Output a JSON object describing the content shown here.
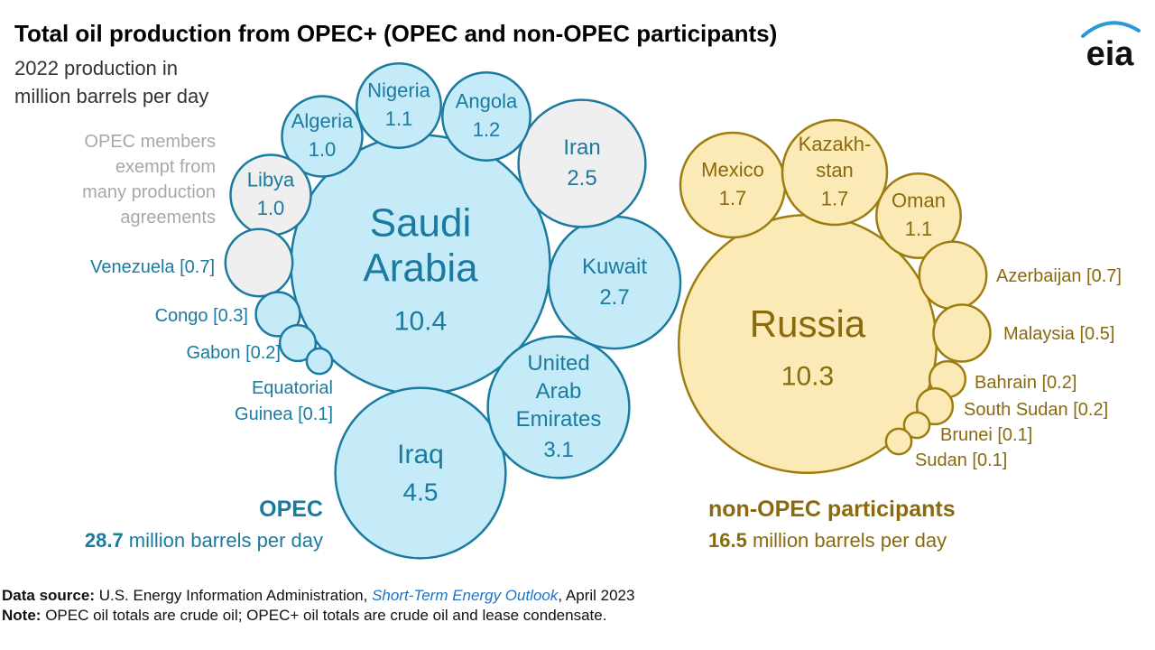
{
  "header": {
    "title": "Total oil production from OPEC+ (OPEC and non-OPEC participants)",
    "subtitle_line1": "2022 production in",
    "subtitle_line2": "million barrels per day",
    "logo_text": "eia"
  },
  "colors": {
    "opec_fill": "#c5ebf9",
    "opec_stroke": "#1a7aa0",
    "opec_text": "#1a7aa0",
    "exempt_fill": "#efefef",
    "exempt_text": "#a8a8a8",
    "nonopec_fill": "#fbeab5",
    "nonopec_stroke": "#9e7d10",
    "nonopec_text": "#8a6a0d",
    "logo_arc": "#2a9ad6"
  },
  "chart_data": {
    "type": "bubble",
    "units": "million barrels per day",
    "exempt_note": [
      "OPEC members",
      "exempt from",
      "many production",
      "agreements"
    ],
    "groups": [
      {
        "group": "OPEC",
        "total_value": "28.7",
        "total_unit": "million barrels per day",
        "members": [
          {
            "name": "Saudi Arabia",
            "value": 10.4,
            "label": [
              "Saudi",
              "Arabia"
            ],
            "exempt": false
          },
          {
            "name": "Iraq",
            "value": 4.5,
            "label": [
              "Iraq"
            ],
            "exempt": false
          },
          {
            "name": "United Arab Emirates",
            "value": 3.1,
            "label": [
              "United",
              "Arab",
              "Emirates"
            ],
            "exempt": false
          },
          {
            "name": "Kuwait",
            "value": 2.7,
            "label": [
              "Kuwait"
            ],
            "exempt": false
          },
          {
            "name": "Iran",
            "value": 2.5,
            "label": [
              "Iran"
            ],
            "exempt": true
          },
          {
            "name": "Angola",
            "value": 1.2,
            "label": [
              "Angola"
            ],
            "exempt": false
          },
          {
            "name": "Nigeria",
            "value": 1.1,
            "label": [
              "Nigeria"
            ],
            "exempt": false
          },
          {
            "name": "Algeria",
            "value": 1.0,
            "label": [
              "Algeria"
            ],
            "exempt": false
          },
          {
            "name": "Libya",
            "value": 1.0,
            "label": [
              "Libya"
            ],
            "exempt": true
          },
          {
            "name": "Venezuela",
            "value": 0.7,
            "label": [
              "Venezuela [0.7]"
            ],
            "exempt": true
          },
          {
            "name": "Congo",
            "value": 0.3,
            "label": [
              "Congo [0.3]"
            ],
            "exempt": false
          },
          {
            "name": "Gabon",
            "value": 0.2,
            "label": [
              "Gabon [0.2]"
            ],
            "exempt": false
          },
          {
            "name": "Equatorial Guinea",
            "value": 0.1,
            "label": [
              "Equatorial",
              "Guinea [0.1]"
            ],
            "exempt": false
          }
        ]
      },
      {
        "group": "non-OPEC participants",
        "total_value": "16.5",
        "total_unit": "million barrels per day",
        "members": [
          {
            "name": "Russia",
            "value": 10.3,
            "label": [
              "Russia"
            ]
          },
          {
            "name": "Mexico",
            "value": 1.7,
            "label": [
              "Mexico"
            ]
          },
          {
            "name": "Kazakhstan",
            "value": 1.7,
            "label": [
              "Kazakh-",
              "stan"
            ]
          },
          {
            "name": "Oman",
            "value": 1.1,
            "label": [
              "Oman"
            ]
          },
          {
            "name": "Azerbaijan",
            "value": 0.7,
            "label": [
              "Azerbaijan [0.7]"
            ]
          },
          {
            "name": "Malaysia",
            "value": 0.5,
            "label": [
              "Malaysia [0.5]"
            ]
          },
          {
            "name": "Bahrain",
            "value": 0.2,
            "label": [
              "Bahrain [0.2]"
            ]
          },
          {
            "name": "South Sudan",
            "value": 0.2,
            "label": [
              "South Sudan [0.2]"
            ]
          },
          {
            "name": "Brunei",
            "value": 0.1,
            "label": [
              "Brunei [0.1]"
            ]
          },
          {
            "name": "Sudan",
            "value": 0.1,
            "label": [
              "Sudan [0.1]"
            ]
          }
        ]
      }
    ]
  },
  "footer": {
    "source_label": "Data source:",
    "source_text": "U.S. Energy Information Administration,",
    "source_pub": "Short-Term Energy Outlook",
    "source_date": ", April 2023",
    "note_label": "Note:",
    "note_text": "OPEC oil totals are crude oil; OPEC+ oil totals are crude oil and lease condensate."
  }
}
